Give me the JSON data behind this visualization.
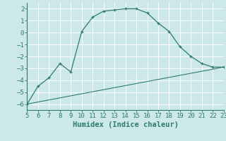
{
  "xlabel": "Humidex (Indice chaleur)",
  "xlim": [
    5,
    23
  ],
  "ylim": [
    -6.5,
    2.5
  ],
  "xticks": [
    5,
    6,
    7,
    8,
    9,
    10,
    11,
    12,
    13,
    14,
    15,
    16,
    17,
    18,
    19,
    20,
    21,
    22,
    23
  ],
  "yticks": [
    -6,
    -5,
    -4,
    -3,
    -2,
    -1,
    0,
    1,
    2
  ],
  "curve1_x": [
    5,
    6,
    7,
    8,
    9,
    10,
    11,
    12,
    13,
    14,
    15,
    16,
    17,
    18,
    19,
    20,
    21,
    22,
    23
  ],
  "curve1_y": [
    -6.0,
    -4.5,
    -3.8,
    -2.6,
    -3.3,
    0.1,
    1.3,
    1.8,
    1.9,
    2.0,
    2.0,
    1.65,
    0.8,
    0.1,
    -1.2,
    -2.0,
    -2.6,
    -2.9,
    -2.9
  ],
  "curve2_x": [
    5,
    23
  ],
  "curve2_y": [
    -6.0,
    -2.9
  ],
  "line_color": "#2e7b6e",
  "bg_color": "#cce8e8",
  "grid_color": "#ffffff",
  "tick_label_fontsize": 6.5,
  "xlabel_fontsize": 7.5
}
